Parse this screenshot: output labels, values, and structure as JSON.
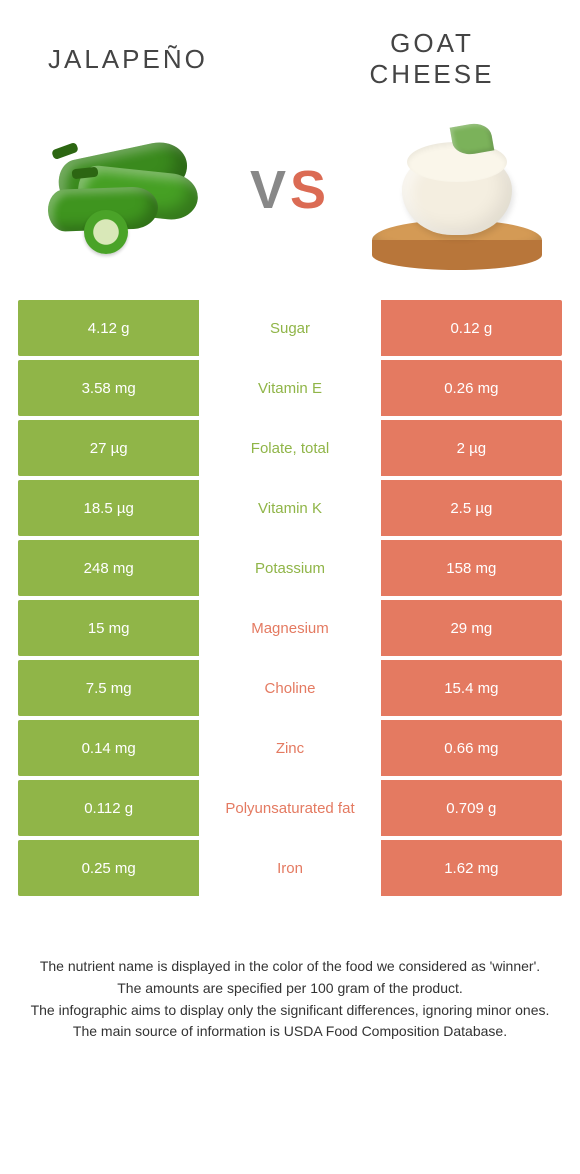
{
  "titles": {
    "left": "JALAPEÑO",
    "right": "GOAT CHEESE"
  },
  "vs": {
    "v": "V",
    "s": "S"
  },
  "colors": {
    "left": "#90b548",
    "right": "#e47a61",
    "nutrient_left_text": "#90b548",
    "nutrient_right_text": "#e47a61",
    "row_gap_bg": "#ffffff"
  },
  "rows": [
    {
      "left": "4.12 g",
      "nutrient": "Sugar",
      "right": "0.12 g",
      "winner": "left"
    },
    {
      "left": "3.58 mg",
      "nutrient": "Vitamin E",
      "right": "0.26 mg",
      "winner": "left"
    },
    {
      "left": "27 µg",
      "nutrient": "Folate, total",
      "right": "2 µg",
      "winner": "left"
    },
    {
      "left": "18.5 µg",
      "nutrient": "Vitamin K",
      "right": "2.5 µg",
      "winner": "left"
    },
    {
      "left": "248 mg",
      "nutrient": "Potassium",
      "right": "158 mg",
      "winner": "left"
    },
    {
      "left": "15 mg",
      "nutrient": "Magnesium",
      "right": "29 mg",
      "winner": "right"
    },
    {
      "left": "7.5 mg",
      "nutrient": "Choline",
      "right": "15.4 mg",
      "winner": "right"
    },
    {
      "left": "0.14 mg",
      "nutrient": "Zinc",
      "right": "0.66 mg",
      "winner": "right"
    },
    {
      "left": "0.112 g",
      "nutrient": "Polyunsaturated fat",
      "right": "0.709 g",
      "winner": "right"
    },
    {
      "left": "0.25 mg",
      "nutrient": "Iron",
      "right": "1.62 mg",
      "winner": "right"
    }
  ],
  "footer": {
    "l1": "The nutrient name is displayed in the color of the food we considered as 'winner'.",
    "l2": "The amounts are specified per 100 gram of the product.",
    "l3": "The infographic aims to display only the significant differences, ignoring minor ones.",
    "l4": "The main source of information is USDA Food Composition Database."
  }
}
